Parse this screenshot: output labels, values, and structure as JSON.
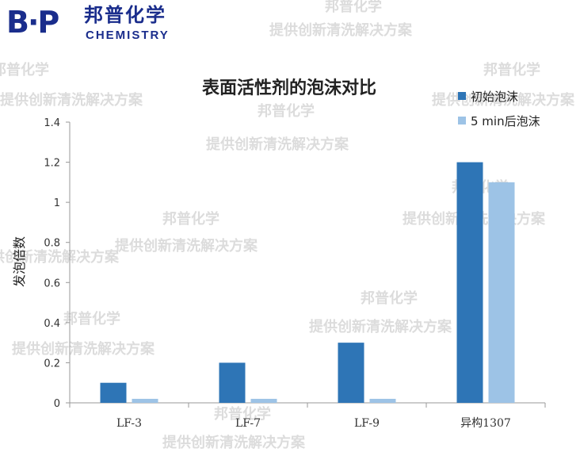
{
  "logo": {
    "mark": "B·P",
    "name": "邦普化学",
    "sub": "CHEMISTRY"
  },
  "watermarks": [
    {
      "text": "邦普化学"
    },
    {
      "text": "提供创新清洗解决方案"
    }
  ],
  "colors": {
    "series1": "#2e75b6",
    "series2": "#9dc3e6",
    "axis": "#999999"
  },
  "chart_data": {
    "type": "bar",
    "title": "表面活性剂的泡沫对比",
    "xlabel": "",
    "ylabel": "发泡倍数",
    "ylim": [
      0,
      1.4
    ],
    "yticks": [
      "0",
      "0.2",
      "0.4",
      "0.6",
      "0.8",
      "1",
      "1.2",
      "1.4"
    ],
    "categories": [
      "LF-3",
      "LF-7",
      "LF-9",
      "异构1307"
    ],
    "series": [
      {
        "name": "初始泡沫",
        "values": [
          0.1,
          0.2,
          0.3,
          1.2
        ]
      },
      {
        "name": "5 min后泡沫",
        "values": [
          0.02,
          0.02,
          0.02,
          1.1
        ]
      }
    ],
    "legend": "top-right",
    "grid": false
  }
}
